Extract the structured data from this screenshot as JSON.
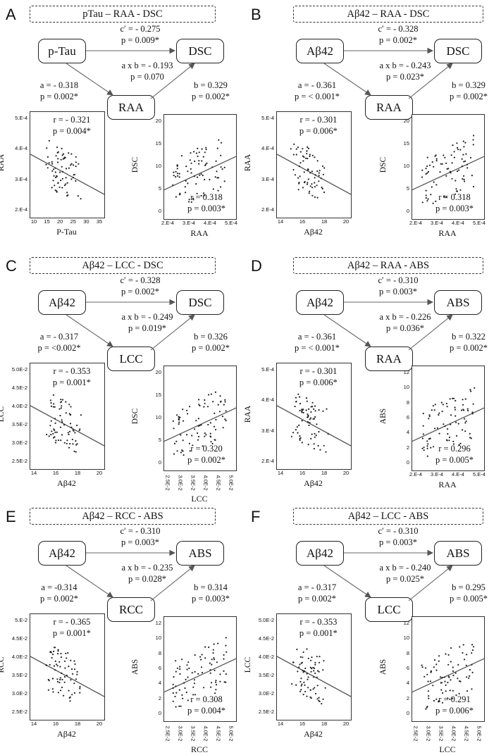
{
  "panels": [
    {
      "letter": "A",
      "title": "pTau – RAA - DSC",
      "iv": "p-Tau",
      "med": "RAA",
      "dv": "DSC",
      "c": "c′ = - 0.275\np = 0.009*",
      "ab": "a x b = - 0.193\np = 0.070",
      "a": "a = - 0.318\np = 0.002*",
      "b": "b = 0.329\np = 0.002*",
      "left": {
        "stat": "r = - 0.321\np = 0.004*",
        "xlabel": "P-Tau",
        "ylabel": "RAA",
        "yticks": [
          "5.E-4",
          "4.E-4",
          "3.E-4",
          "2.E-4"
        ],
        "xticks": [
          "10",
          "15",
          "20",
          "25",
          "30",
          "35"
        ],
        "xrot": false
      },
      "right": {
        "stat": "r = 0.318\np = 0.003*",
        "xlabel": "RAA",
        "ylabel": "DSC",
        "yticks": [
          "20",
          "15",
          "10",
          "5",
          "0"
        ],
        "xticks": [
          "2.E-4",
          "3.E-4",
          "4.E-4",
          "5.E-4"
        ],
        "xrot": false
      }
    },
    {
      "letter": "B",
      "title": "Aβ42 – RAA - DSC",
      "iv": "Aβ42",
      "med": "RAA",
      "dv": "DSC",
      "c": "c′ = - 0.328\np = 0.002*",
      "ab": "a x b = - 0.243\np = 0.023*",
      "a": "a = - 0.361\np = < 0.001*",
      "b": "b = 0.329\np = 0.002*",
      "left": {
        "stat": "r = - 0.301\np = 0.006*",
        "xlabel": "Aβ42",
        "ylabel": "RAA",
        "yticks": [
          "5.E-4",
          "4.E-4",
          "3.E-4",
          "2.E-4"
        ],
        "xticks": [
          "14",
          "16",
          "18",
          "20"
        ],
        "xrot": false
      },
      "right": {
        "stat": "r = 0.318\np = 0.003*",
        "xlabel": "RAA",
        "ylabel": "DSC",
        "yticks": [
          "20",
          "15",
          "10",
          "5",
          "0"
        ],
        "xticks": [
          "2.E-4",
          "3.E-4",
          "4.E-4",
          "5.E-4"
        ],
        "xrot": false
      }
    },
    {
      "letter": "C",
      "title": "Aβ42 – LCC - DSC",
      "iv": "Aβ42",
      "med": "LCC",
      "dv": "DSC",
      "c": "c′ = - 0.328\np = 0.002*",
      "ab": "a x b = - 0.249\np = 0.019*",
      "a": "a = - 0.317\np = <0.002*",
      "b": "b = 0.326\np = 0.002*",
      "left": {
        "stat": "r = - 0.353\np = 0.001*",
        "xlabel": "Aβ42",
        "ylabel": "LCC",
        "yticks": [
          "5.0E-2",
          "4.5E-2",
          "4.0E-2",
          "3.5E-2",
          "3.0E-2",
          "2.5E-2"
        ],
        "xticks": [
          "14",
          "16",
          "18",
          "20"
        ],
        "xrot": false
      },
      "right": {
        "stat": "r = 0.320\np = 0.002*",
        "xlabel": "LCC",
        "ylabel": "DSC",
        "yticks": [
          "20",
          "15",
          "10",
          "5",
          "0"
        ],
        "xticks": [
          "2.5E-2",
          "3.0E-2",
          "3.5E-2",
          "4.0E-2",
          "4.5E-2",
          "5.0E-2"
        ],
        "xrot": true
      }
    },
    {
      "letter": "D",
      "title": "Aβ42 – RAA - ABS",
      "iv": "Aβ42",
      "med": "RAA",
      "dv": "ABS",
      "c": "c′ = - 0.310\np = 0.003*",
      "ab": "a x b = - 0.226\np = 0.036*",
      "a": "a = - 0.361\np = < 0.001*",
      "b": "b = 0.322\np = 0.002*",
      "left": {
        "stat": "r = - 0.301\np = 0.006*",
        "xlabel": "Aβ42",
        "ylabel": "RAA",
        "yticks": [
          "5.E-4",
          "4.E-4",
          "3.E-4",
          "2.E-4"
        ],
        "xticks": [
          "14",
          "16",
          "18",
          "20"
        ],
        "xrot": false
      },
      "right": {
        "stat": "r = 0.296\np = 0.005*",
        "xlabel": "RAA",
        "ylabel": "ABS",
        "yticks": [
          "12",
          "10",
          "8",
          "6",
          "4",
          "2",
          "0"
        ],
        "xticks": [
          "2.E-4",
          "3.E-4",
          "4.E-4",
          "5.E-4"
        ],
        "xrot": false
      }
    },
    {
      "letter": "E",
      "title": "Aβ42 – RCC - ABS",
      "iv": "Aβ42",
      "med": "RCC",
      "dv": "ABS",
      "c": "c′ = - 0.310\np = 0.003*",
      "ab": "a x b = - 0.235\np = 0.028*",
      "a": "a = -0.314\np = 0.002*",
      "b": "b = 0.314\np = 0.003*",
      "left": {
        "stat": "r = - 0.365\np = 0.001*",
        "xlabel": "Aβ42",
        "ylabel": "RCC",
        "yticks": [
          "5.E-2",
          "4.5E-2",
          "4.0E-2",
          "3.5E-2",
          "3.0E-2",
          "2.5E-2"
        ],
        "xticks": [
          "14",
          "16",
          "18",
          "20"
        ],
        "xrot": false
      },
      "right": {
        "stat": "r = 0.308\np = 0.004*",
        "xlabel": "RCC",
        "ylabel": "ABS",
        "yticks": [
          "12",
          "10",
          "8",
          "6",
          "4",
          "2",
          "0"
        ],
        "xticks": [
          "2.5E-2",
          "3.0E-2",
          "3.5E-2",
          "4.0E-2",
          "4.5E-2",
          "5.0E-2"
        ],
        "xrot": true
      }
    },
    {
      "letter": "F",
      "title": "Aβ42 – LCC - ABS",
      "iv": "Aβ42",
      "med": "LCC",
      "dv": "ABS",
      "c": "c′ = - 0.310\np = 0.003*",
      "ab": "a x b = - 0.240\np = 0.025*",
      "a": "a = - 0.317\np = 0.002*",
      "b": "b = 0.295\np = 0.005*",
      "left": {
        "stat": "r = - 0.353\np = 0.001*",
        "xlabel": "Aβ42",
        "ylabel": "LCC",
        "yticks": [
          "5.0E-2",
          "4.5E-2",
          "4.0E-2",
          "3.5E-2",
          "3.0E-2",
          "2.5E-2"
        ],
        "xticks": [
          "14",
          "16",
          "18",
          "20"
        ],
        "xrot": false
      },
      "right": {
        "stat": "r = 0.291\np = 0.006*",
        "xlabel": "LCC",
        "ylabel": "ABS",
        "yticks": [
          "12",
          "10",
          "8",
          "6",
          "4",
          "2",
          "0"
        ],
        "xticks": [
          "2.5E-2",
          "3.0E-2",
          "3.5E-2",
          "4.0E-2",
          "4.5E-2",
          "5.0E-2"
        ],
        "xrot": true
      }
    }
  ]
}
